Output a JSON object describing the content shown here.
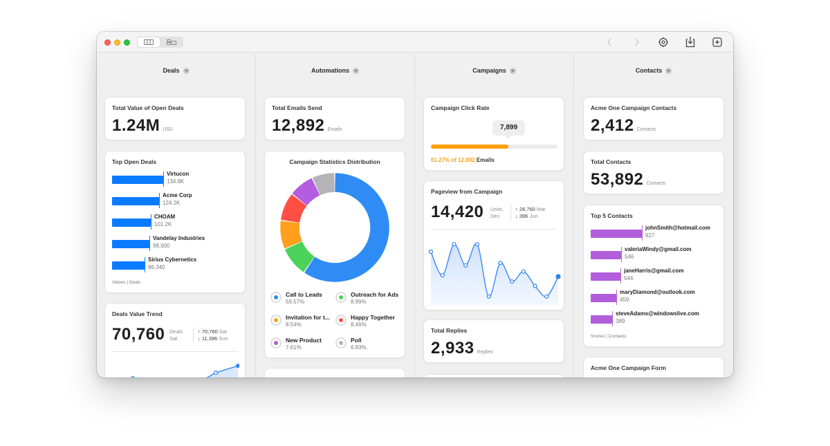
{
  "columns": [
    {
      "id": "deals",
      "title": "Deals"
    },
    {
      "id": "automations",
      "title": "Automations"
    },
    {
      "id": "campaigns",
      "title": "Campaigns"
    },
    {
      "id": "contacts",
      "title": "Contacts"
    }
  ],
  "deals": {
    "open_value": {
      "title": "Total Value of Open Deals",
      "value": "1.24M",
      "unit": "USD"
    },
    "top_open": {
      "title": "Top Open Deals",
      "items": [
        {
          "name": "Virtucon",
          "value": "134.8K",
          "amount": 134800
        },
        {
          "name": "Acme Corp",
          "value": "124.2K",
          "amount": 124200
        },
        {
          "name": "CHOAM",
          "value": "101.2K",
          "amount": 101200
        },
        {
          "name": "Vandelay Industries",
          "value": "98,900",
          "amount": 98900
        },
        {
          "name": "Sirius Cybernetics",
          "value": "86,340",
          "amount": 86340
        }
      ],
      "footer": "Values  |  Deals",
      "color": "#0a7aff"
    },
    "trend": {
      "title": "Deals Value Trend",
      "value": "70,760",
      "unit_top": "Deals",
      "unit_bottom": "Sat",
      "high_value": "70,760",
      "high_label": "Sat",
      "low_value": "11,396",
      "low_label": "Sun"
    }
  },
  "automations": {
    "emails": {
      "title": "Total Emails Send",
      "value": "12,892",
      "unit": "Emails"
    },
    "distribution": {
      "title": "Campaign Statistics Distribution",
      "segments": [
        {
          "name": "Call to Leads",
          "pct": "59.57%",
          "value": 59.57,
          "color": "#2f8cf5"
        },
        {
          "name": "Outreach for Ads",
          "pct": "8.99%",
          "value": 8.99,
          "color": "#4cd25a"
        },
        {
          "name": "Invitation for t...",
          "pct": "8.54%",
          "value": 8.54,
          "color": "#ff9f1c"
        },
        {
          "name": "Happy Together",
          "pct": "8.46%",
          "value": 8.46,
          "color": "#ff4f44"
        },
        {
          "name": "New Product",
          "pct": "7.61%",
          "value": 7.61,
          "color": "#b45de0"
        },
        {
          "name": "Poll",
          "pct": "6.83%",
          "value": 6.83,
          "color": "#b3b3b8"
        }
      ]
    }
  },
  "campaigns": {
    "click_rate": {
      "title": "Campaign Click Rate",
      "tooltip": "7,899",
      "progress": 0.6127,
      "caption_pct": "61.27% of 12,892",
      "caption_unit": "Emails",
      "color": "#ff9f0a"
    },
    "pageview": {
      "title": "Pageview from Campaign",
      "value": "14,420",
      "unit_top": "Units",
      "unit_bottom": "Dec",
      "high_value": "28,760",
      "high_label": "Mar",
      "low_value": "396",
      "low_label": "Jun",
      "series": [
        0.8,
        0.42,
        0.92,
        0.58,
        0.92,
        0.08,
        0.62,
        0.32,
        0.48,
        0.25,
        0.08,
        0.4
      ]
    },
    "replies": {
      "title": "Total Replies",
      "value": "2,933",
      "unit": "Replies"
    }
  },
  "contacts": {
    "acme": {
      "title": "Acme One Campaign Contacts",
      "value": "2,412",
      "unit": "Contacts"
    },
    "total": {
      "title": "Total Contacts",
      "value": "53,892",
      "unit": "Contacts"
    },
    "top5": {
      "title": "Top 5 Contacts",
      "items": [
        {
          "email": "johnSmith@hotmail.com",
          "score": "927",
          "amount": 927
        },
        {
          "email": "valeriaWindy@gmail.com",
          "score": "546",
          "amount": 546
        },
        {
          "email": "janeHarris@gmail.com",
          "score": "544",
          "amount": 544
        },
        {
          "email": "maryDiamond@outlook.com",
          "score": "459",
          "amount": 459
        },
        {
          "email": "steveAdams@windowslive.com",
          "score": "389",
          "amount": 389
        }
      ],
      "footer": "Scores  |  Contacts",
      "color": "#b15ddc"
    },
    "form": {
      "title": "Acme One Campaign Form"
    }
  }
}
